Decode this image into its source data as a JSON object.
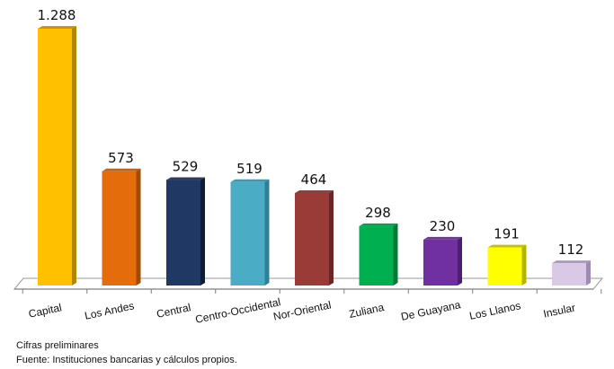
{
  "chart_data": {
    "type": "bar",
    "categories": [
      "Capital",
      "Los Andes",
      "Central",
      "Centro-Occidental",
      "Nor-Oriental",
      "Zuliana",
      "De Guayana",
      "Los Llanos",
      "Insular"
    ],
    "values": [
      1288,
      573,
      529,
      519,
      464,
      298,
      230,
      191,
      112
    ],
    "value_labels": [
      "1.288",
      "573",
      "529",
      "519",
      "464",
      "298",
      "230",
      "191",
      "112"
    ],
    "colors": [
      "#FFC000",
      "#E46C0A",
      "#1F3864",
      "#4BACC6",
      "#9B3B38",
      "#00B050",
      "#7030A0",
      "#FFFF00",
      "#D9C8E6"
    ],
    "side_colors": [
      "#B38600",
      "#A04C07",
      "#0F1D33",
      "#2F7F96",
      "#6A2624",
      "#007A38",
      "#4C1F6E",
      "#B3B300",
      "#9E8BAF"
    ],
    "ylim": [
      0,
      1288
    ],
    "grid": false,
    "legend": "none"
  },
  "footnotes": {
    "line1": "Cifras preliminares",
    "line2": "Fuente: Instituciones bancarias y cálculos propios."
  }
}
